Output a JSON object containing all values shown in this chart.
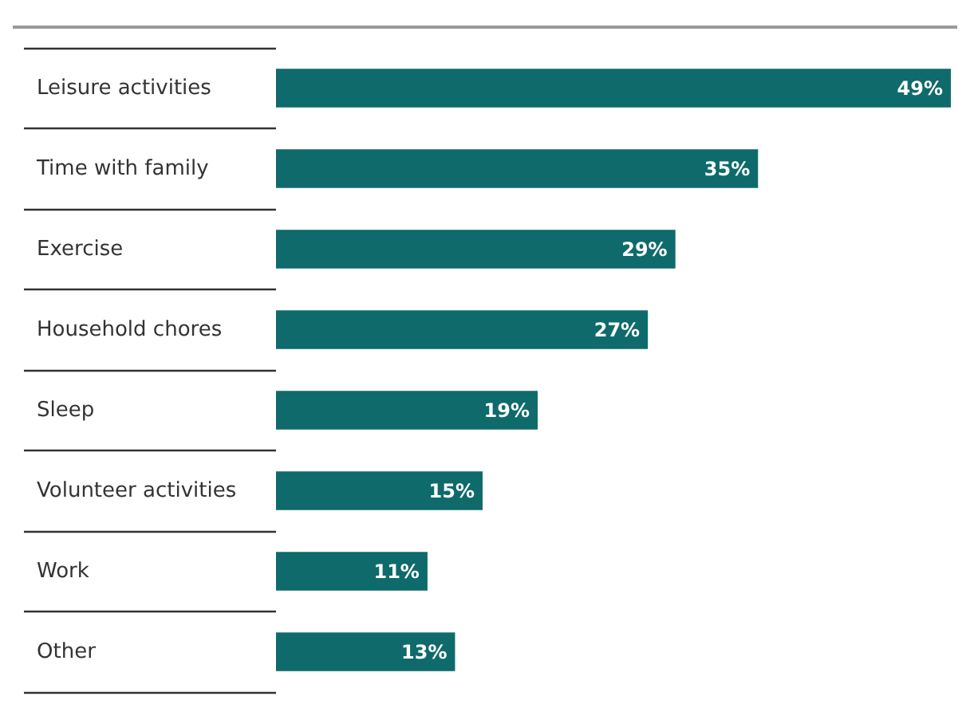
{
  "chart_data": {
    "type": "bar",
    "orientation": "horizontal",
    "categories": [
      "Leisure activities",
      "Time with family",
      "Exercise",
      "Household chores",
      "Sleep",
      "Volunteer activities",
      "Work",
      "Other"
    ],
    "values": [
      49,
      35,
      29,
      27,
      19,
      15,
      11,
      13
    ],
    "color": "#0f6a6b",
    "value_labels": [
      "49%",
      "35%",
      "29%",
      "27%",
      "19%",
      "15%",
      "11%",
      "13%"
    ]
  }
}
